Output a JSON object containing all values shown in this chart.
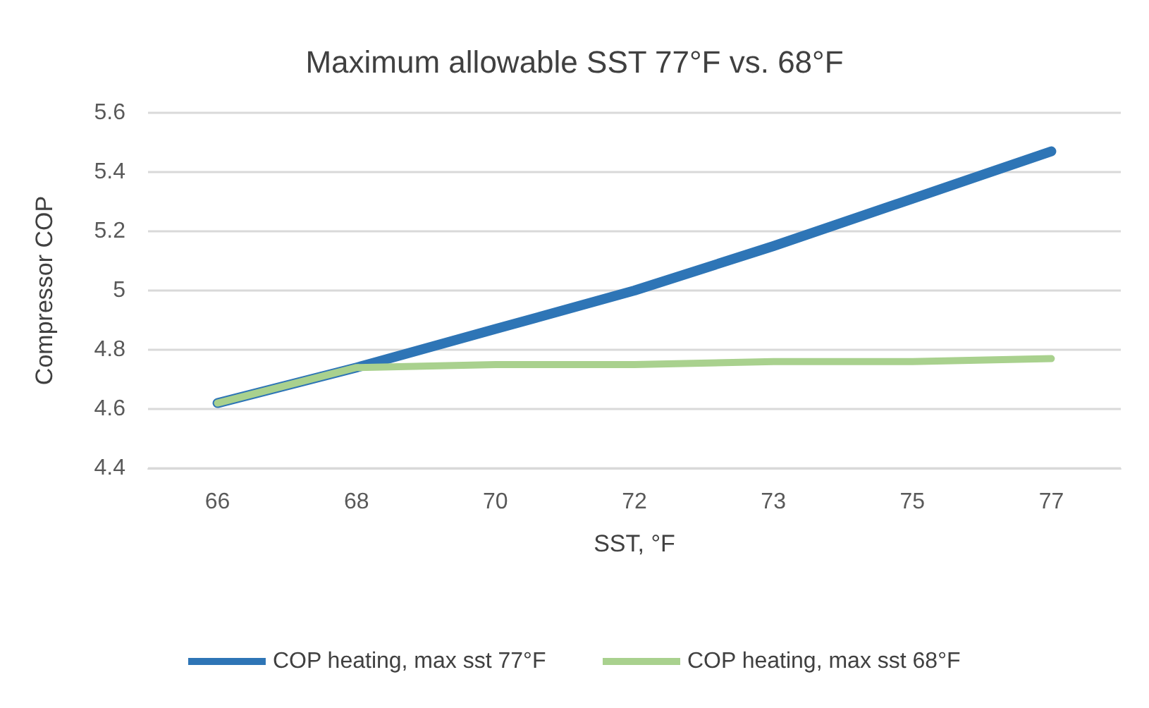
{
  "chart_data": {
    "type": "line",
    "title": "Maximum allowable SST 77°F vs. 68°F",
    "xlabel": "SST, °F",
    "ylabel": "Compressor COP",
    "categories": [
      "66",
      "68",
      "70",
      "72",
      "73",
      "75",
      "77"
    ],
    "series": [
      {
        "name": "COP heating, max sst 77°F",
        "color": "#2e75b6",
        "values": [
          4.62,
          4.74,
          4.87,
          5.0,
          5.15,
          5.31,
          5.47
        ]
      },
      {
        "name": "COP heating, max sst 68°F",
        "color": "#a9d18e",
        "values": [
          4.62,
          4.74,
          4.75,
          4.75,
          4.76,
          4.76,
          4.77
        ]
      }
    ],
    "ylim": [
      4.4,
      5.6
    ],
    "yticks": [
      4.4,
      4.6,
      4.8,
      5,
      5.2,
      5.4,
      5.6
    ],
    "grid": "y",
    "legend": "bottom",
    "marker": "none",
    "line_style": "solid"
  }
}
